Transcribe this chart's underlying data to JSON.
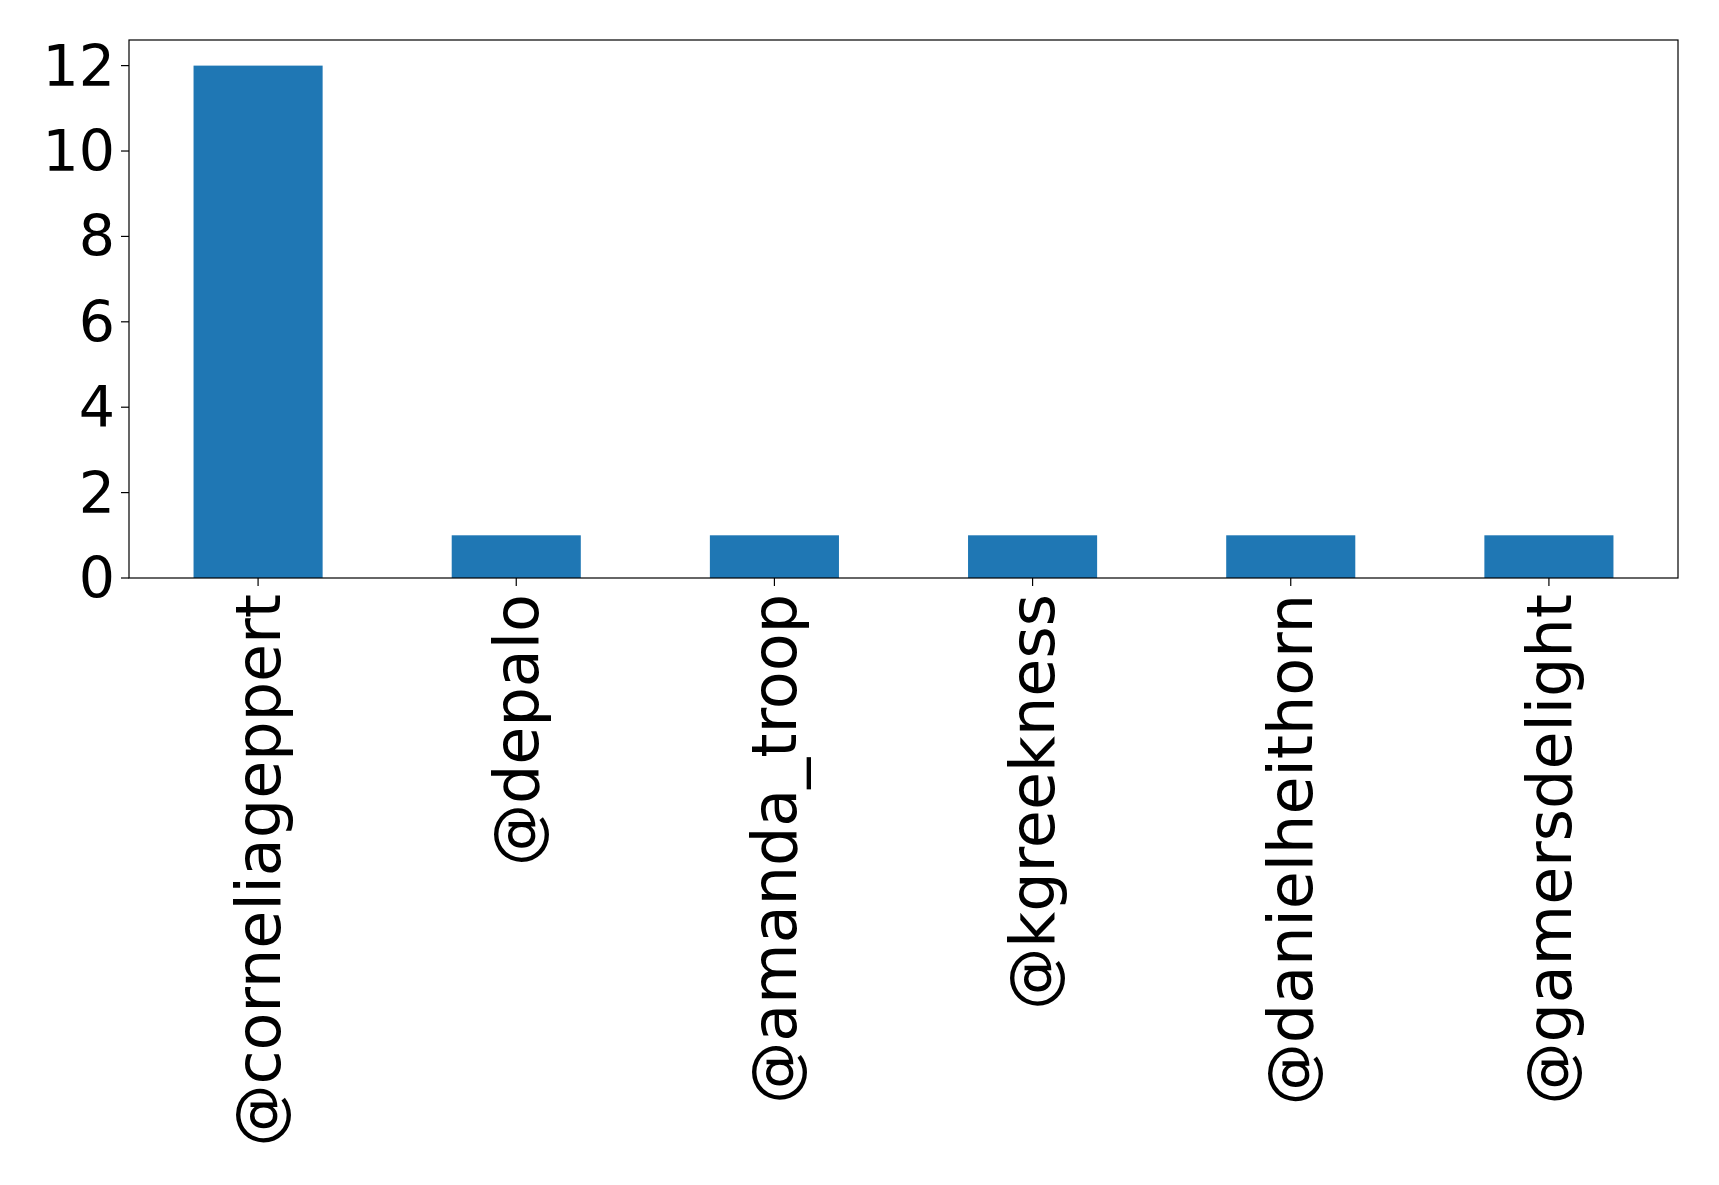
{
  "chart_data": {
    "type": "bar",
    "categories": [
      "@corneliageppert",
      "@depalo",
      "@amanda_troop",
      "@kgreekness",
      "@danielheithorn",
      "@gamersdelight"
    ],
    "values": [
      12,
      1,
      1,
      1,
      1,
      1
    ],
    "color": "#1f77b4",
    "ylim": [
      0,
      12.6
    ],
    "yticks": [
      0,
      2,
      4,
      6,
      8,
      10,
      12
    ],
    "grid": false
  }
}
